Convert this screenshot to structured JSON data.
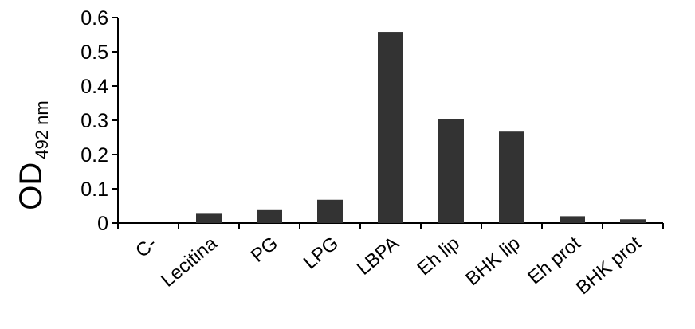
{
  "chart_data": {
    "type": "bar",
    "title": "",
    "xlabel": "",
    "ylabel": "OD",
    "ylabel_subscript": "492 nm",
    "categories": [
      "C-",
      "Lecitina",
      "PG",
      "LPG",
      "LBPA",
      "Eh lip",
      "BHK lip",
      "Eh prot",
      "BHK prot"
    ],
    "values": [
      0.0,
      0.027,
      0.04,
      0.068,
      0.558,
      0.303,
      0.267,
      0.02,
      0.011
    ],
    "ylim": [
      0,
      0.6
    ],
    "yticks": [
      "0",
      "0.1",
      "0.2",
      "0.3",
      "0.4",
      "0.5",
      "0.6"
    ],
    "bar_color": "#333333",
    "grid": false,
    "legend": "none"
  }
}
